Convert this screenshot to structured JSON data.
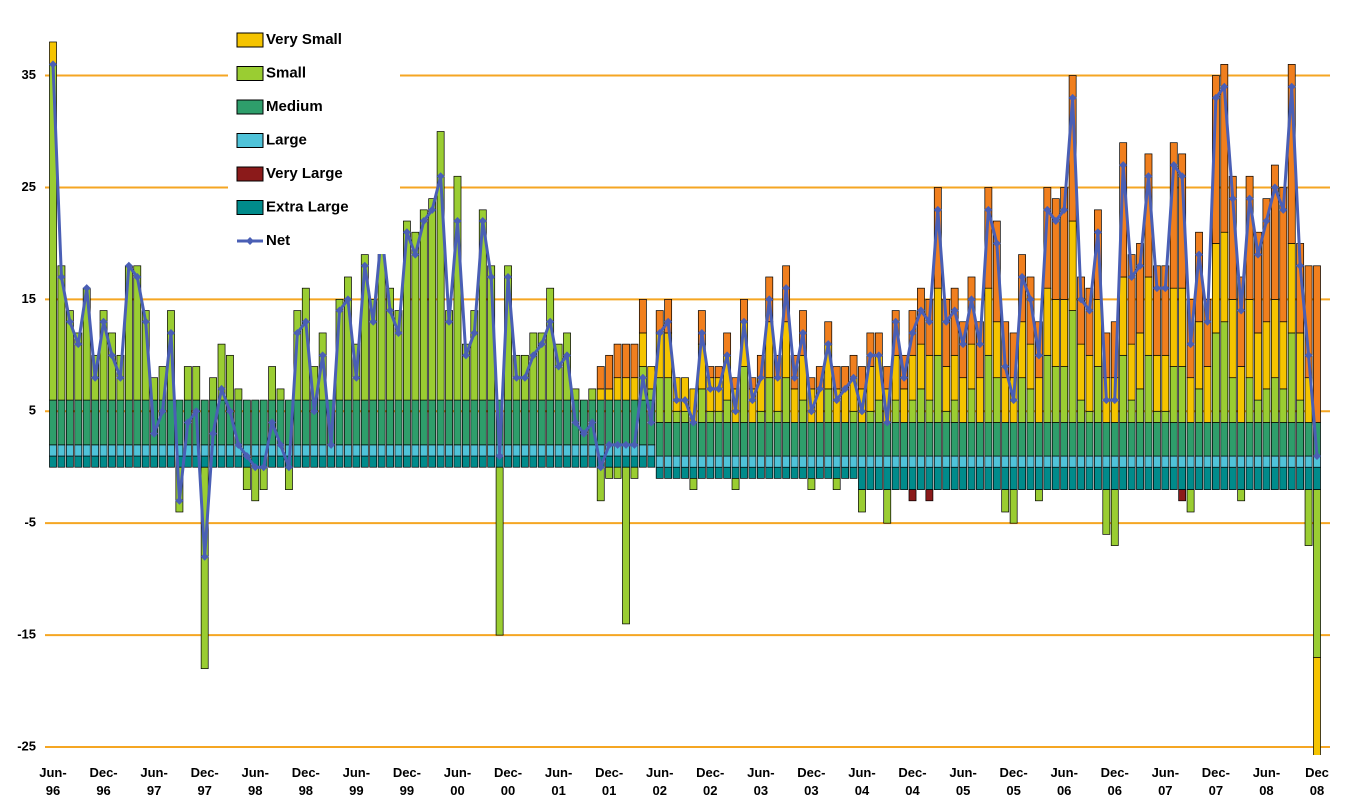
{
  "chart_data": {
    "type": "bar",
    "stacked": true,
    "grid": true,
    "legend_position": "upper-left",
    "ylim": [
      -25,
      40.5
    ],
    "yticks": [
      -25,
      -15,
      -5,
      5,
      15,
      25,
      35
    ],
    "categories": [
      "Jun-96",
      null,
      null,
      null,
      null,
      null,
      "Dec-96",
      null,
      null,
      null,
      null,
      null,
      "Jun-97",
      null,
      null,
      null,
      null,
      null,
      "Dec-97",
      null,
      null,
      null,
      null,
      null,
      "Jun-98",
      null,
      null,
      null,
      null,
      null,
      "Dec-98",
      null,
      null,
      null,
      null,
      null,
      "Jun-99",
      null,
      null,
      null,
      null,
      null,
      "Dec-99",
      null,
      null,
      null,
      null,
      null,
      "Jun-00",
      null,
      null,
      null,
      null,
      null,
      "Dec-00",
      null,
      null,
      null,
      null,
      null,
      "Jun-01",
      null,
      null,
      null,
      null,
      null,
      "Dec-01",
      null,
      null,
      null,
      null,
      null,
      "Jun-02",
      null,
      null,
      null,
      null,
      null,
      "Dec-02",
      null,
      null,
      null,
      null,
      null,
      "Jun-03",
      null,
      null,
      null,
      null,
      null,
      "Dec-03",
      null,
      null,
      null,
      null,
      null,
      "Jun-04",
      null,
      null,
      null,
      null,
      null,
      "Dec-04",
      null,
      null,
      null,
      null,
      null,
      "Jun-05",
      null,
      null,
      null,
      null,
      null,
      "Dec-05",
      null,
      null,
      null,
      null,
      null,
      "Jun-06",
      null,
      null,
      null,
      null,
      null,
      "Dec-06",
      null,
      null,
      null,
      null,
      null,
      "Jun-07",
      null,
      null,
      null,
      null,
      null,
      "Dec-07",
      null,
      null,
      null,
      null,
      null,
      "Jun-08",
      null,
      null,
      null,
      null,
      null,
      "Dec 08"
    ],
    "series": [
      {
        "color": "#f07f1e",
        "values": [
          0,
          0,
          0,
          0,
          0,
          0,
          0,
          0,
          0,
          0,
          0,
          0,
          0,
          0,
          0,
          0,
          0,
          0,
          0,
          0,
          0,
          0,
          0,
          0,
          0,
          0,
          0,
          0,
          0,
          0,
          0,
          0,
          0,
          0,
          0,
          0,
          0,
          0,
          0,
          0,
          0,
          0,
          0,
          0,
          0,
          0,
          0,
          0,
          0,
          0,
          0,
          0,
          0,
          0,
          0,
          0,
          0,
          0,
          0,
          0,
          0,
          0,
          0,
          0,
          0,
          2,
          3,
          3,
          3,
          3,
          3,
          0,
          2,
          3,
          0,
          0,
          0,
          3,
          1,
          1,
          2,
          1,
          2,
          1,
          2,
          4,
          2,
          5,
          3,
          4,
          1,
          2,
          2,
          2,
          2,
          2,
          2,
          3,
          2,
          2,
          4,
          3,
          4,
          5,
          5,
          9,
          6,
          6,
          5,
          6,
          5,
          9,
          9,
          5,
          4,
          6,
          6,
          5,
          9,
          9,
          10,
          13,
          6,
          6,
          8,
          4,
          5,
          12,
          8,
          8,
          11,
          8,
          8,
          13,
          12,
          7,
          8,
          6,
          15,
          15,
          11,
          8,
          11,
          9,
          11,
          12,
          12,
          16,
          8,
          10,
          14
        ]
      },
      {
        "name": "Very Small",
        "color": "#f5c400",
        "values": [
          2,
          0,
          0,
          0,
          0,
          0,
          0,
          0,
          0,
          0,
          0,
          0,
          0,
          0,
          0,
          0,
          0,
          0,
          0,
          0,
          0,
          0,
          0,
          0,
          0,
          0,
          0,
          0,
          0,
          0,
          0,
          0,
          0,
          0,
          0,
          0,
          0,
          0,
          0,
          0,
          0,
          0,
          0,
          0,
          0,
          0,
          0,
          0,
          0,
          0,
          0,
          0,
          0,
          0,
          0,
          0,
          0,
          0,
          0,
          0,
          0,
          0,
          0,
          0,
          0,
          1,
          1,
          2,
          2,
          2,
          3,
          2,
          4,
          4,
          3,
          3,
          3,
          4,
          3,
          3,
          4,
          3,
          4,
          3,
          3,
          5,
          3,
          5,
          3,
          4,
          3,
          3,
          4,
          3,
          3,
          3,
          3,
          4,
          4,
          3,
          4,
          3,
          4,
          4,
          4,
          6,
          4,
          4,
          4,
          4,
          4,
          6,
          5,
          4,
          4,
          5,
          4,
          4,
          6,
          6,
          6,
          8,
          5,
          5,
          6,
          4,
          4,
          7,
          5,
          5,
          7,
          5,
          5,
          7,
          7,
          4,
          6,
          5,
          8,
          8,
          7,
          5,
          7,
          6,
          6,
          7,
          6,
          8,
          6,
          4,
          -10
        ]
      },
      {
        "name": "Small",
        "color": "#9acd32",
        "values": [
          30,
          12,
          8,
          6,
          10,
          4,
          8,
          6,
          4,
          12,
          12,
          8,
          2,
          3,
          8,
          -4,
          3,
          3,
          -18,
          2,
          5,
          4,
          1,
          -2,
          -3,
          -2,
          3,
          1,
          -2,
          8,
          10,
          3,
          6,
          0,
          9,
          11,
          5,
          13,
          9,
          16,
          10,
          8,
          16,
          15,
          17,
          18,
          24,
          8,
          20,
          5,
          8,
          17,
          12,
          -15,
          12,
          4,
          4,
          6,
          6,
          10,
          5,
          6,
          1,
          0,
          1,
          -3,
          -1,
          -1,
          -14,
          -1,
          3,
          1,
          4,
          4,
          1,
          1,
          -1,
          3,
          1,
          1,
          2,
          -1,
          5,
          0,
          1,
          4,
          1,
          4,
          0,
          2,
          -1,
          0,
          3,
          -1,
          0,
          1,
          -2,
          1,
          2,
          -3,
          2,
          0,
          2,
          3,
          2,
          6,
          1,
          2,
          0,
          3,
          0,
          6,
          4,
          -2,
          -3,
          4,
          3,
          -1,
          6,
          5,
          5,
          10,
          2,
          1,
          5,
          -4,
          -5,
          6,
          2,
          3,
          6,
          1,
          1,
          5,
          5,
          -2,
          3,
          0,
          8,
          9,
          4,
          -1,
          4,
          2,
          3,
          4,
          3,
          8,
          2,
          -5,
          -15
        ]
      },
      {
        "name": "Medium",
        "color": "#2e9e6b",
        "values": [
          4,
          4,
          4,
          4,
          4,
          4,
          4,
          4,
          4,
          4,
          4,
          4,
          4,
          4,
          4,
          4,
          4,
          4,
          4,
          4,
          4,
          4,
          4,
          4,
          4,
          4,
          4,
          4,
          4,
          4,
          4,
          4,
          4,
          4,
          4,
          4,
          4,
          4,
          4,
          4,
          4,
          4,
          4,
          4,
          4,
          4,
          4,
          4,
          4,
          4,
          4,
          4,
          4,
          4,
          4,
          4,
          4,
          4,
          4,
          4,
          4,
          4,
          4,
          4,
          4,
          4,
          4,
          4,
          4,
          4,
          4,
          4,
          3,
          3,
          3,
          3,
          3,
          3,
          3,
          3,
          3,
          3,
          3,
          3,
          3,
          3,
          3,
          3,
          3,
          3,
          3,
          3,
          3,
          3,
          3,
          3,
          3,
          3,
          3,
          3,
          3,
          3,
          3,
          3,
          3,
          3,
          3,
          3,
          3,
          3,
          3,
          3,
          3,
          3,
          3,
          3,
          3,
          3,
          3,
          3,
          3,
          3,
          3,
          3,
          3,
          3,
          3,
          3,
          3,
          3,
          3,
          3,
          3,
          3,
          3,
          3,
          3,
          3,
          3,
          3,
          3,
          3,
          3,
          3,
          3,
          3,
          3,
          3,
          3,
          3,
          3
        ]
      },
      {
        "name": "Large",
        "color": "#4fc3d9",
        "values": [
          1,
          1,
          1,
          1,
          1,
          1,
          1,
          1,
          1,
          1,
          1,
          1,
          1,
          1,
          1,
          1,
          1,
          1,
          1,
          1,
          1,
          1,
          1,
          1,
          1,
          1,
          1,
          1,
          1,
          1,
          1,
          1,
          1,
          1,
          1,
          1,
          1,
          1,
          1,
          1,
          1,
          1,
          1,
          1,
          1,
          1,
          1,
          1,
          1,
          1,
          1,
          1,
          1,
          1,
          1,
          1,
          1,
          1,
          1,
          1,
          1,
          1,
          1,
          1,
          1,
          1,
          1,
          1,
          1,
          1,
          1,
          1,
          1,
          1,
          1,
          1,
          1,
          1,
          1,
          1,
          1,
          1,
          1,
          1,
          1,
          1,
          1,
          1,
          1,
          1,
          1,
          1,
          1,
          1,
          1,
          1,
          1,
          1,
          1,
          1,
          1,
          1,
          1,
          1,
          1,
          1,
          1,
          1,
          1,
          1,
          1,
          1,
          1,
          1,
          1,
          1,
          1,
          1,
          1,
          1,
          1,
          1,
          1,
          1,
          1,
          1,
          1,
          1,
          1,
          1,
          1,
          1,
          1,
          1,
          1,
          1,
          1,
          1,
          1,
          1,
          1,
          1,
          1,
          1,
          1,
          1,
          1,
          1,
          1,
          1,
          1
        ]
      },
      {
        "name": "Very Large",
        "color": "#8b1a1a",
        "values": [
          0,
          0,
          0,
          0,
          0,
          0,
          0,
          0,
          0,
          0,
          0,
          0,
          0,
          0,
          0,
          0,
          0,
          0,
          0,
          0,
          0,
          0,
          0,
          0,
          0,
          0,
          0,
          0,
          0,
          0,
          0,
          0,
          0,
          0,
          0,
          0,
          0,
          0,
          0,
          0,
          0,
          0,
          0,
          0,
          0,
          0,
          0,
          0,
          0,
          0,
          0,
          0,
          0,
          0,
          0,
          0,
          0,
          0,
          0,
          0,
          0,
          0,
          0,
          0,
          0,
          0,
          0,
          0,
          0,
          0,
          0,
          0,
          0,
          0,
          0,
          0,
          0,
          0,
          0,
          0,
          0,
          0,
          0,
          0,
          0,
          0,
          0,
          0,
          0,
          0,
          0,
          0,
          0,
          0,
          0,
          0,
          0,
          0,
          0,
          0,
          0,
          0,
          -1,
          0,
          -1,
          0,
          0,
          0,
          0,
          0,
          0,
          0,
          0,
          0,
          0,
          0,
          0,
          0,
          0,
          0,
          0,
          0,
          0,
          0,
          0,
          0,
          0,
          0,
          0,
          0,
          0,
          0,
          0,
          0,
          -1,
          0,
          0,
          0,
          0,
          0,
          0,
          0,
          0,
          0,
          0,
          0,
          0,
          0,
          0,
          0,
          0
        ]
      },
      {
        "name": "Extra Large",
        "color": "#008b8b",
        "values": [
          1,
          1,
          1,
          1,
          1,
          1,
          1,
          1,
          1,
          1,
          1,
          1,
          1,
          1,
          1,
          1,
          1,
          1,
          1,
          1,
          1,
          1,
          1,
          1,
          1,
          1,
          1,
          1,
          1,
          1,
          1,
          1,
          1,
          1,
          1,
          1,
          1,
          1,
          1,
          1,
          1,
          1,
          1,
          1,
          1,
          1,
          1,
          1,
          1,
          1,
          1,
          1,
          1,
          1,
          1,
          1,
          1,
          1,
          1,
          1,
          1,
          1,
          1,
          1,
          1,
          1,
          1,
          1,
          1,
          1,
          1,
          1,
          -1,
          -1,
          -1,
          -1,
          -1,
          -1,
          -1,
          -1,
          -1,
          -1,
          -1,
          -1,
          -1,
          -1,
          -1,
          -1,
          -1,
          -1,
          -1,
          -1,
          -1,
          -1,
          -1,
          -1,
          -2,
          -2,
          -2,
          -2,
          -2,
          -2,
          -2,
          -2,
          -2,
          -2,
          -2,
          -2,
          -2,
          -2,
          -2,
          -2,
          -2,
          -2,
          -2,
          -2,
          -2,
          -2,
          -2,
          -2,
          -2,
          -2,
          -2,
          -2,
          -2,
          -2,
          -2,
          -2,
          -2,
          -2,
          -2,
          -2,
          -2,
          -2,
          -2,
          -2,
          -2,
          -2,
          -2,
          -2,
          -2,
          -2,
          -2,
          -2,
          -2,
          -2,
          -2,
          -2,
          -2,
          -2,
          -2
        ]
      }
    ],
    "lines": [
      {
        "name": "Net",
        "color": "#4a5fb5",
        "values": [
          36,
          17,
          13,
          11,
          16,
          8,
          13,
          10,
          8,
          18,
          17,
          13,
          3,
          5,
          12,
          -3,
          4,
          5,
          -8,
          3,
          7,
          5,
          2,
          1,
          0,
          0,
          4,
          2,
          0,
          12,
          13,
          5,
          10,
          2,
          14,
          15,
          8,
          18,
          13,
          21,
          14,
          12,
          21,
          19,
          22,
          23,
          26,
          13,
          22,
          10,
          12,
          22,
          17,
          1,
          17,
          8,
          8,
          10,
          11,
          13,
          9,
          10,
          4,
          3,
          4,
          0,
          2,
          2,
          2,
          2,
          8,
          4,
          12,
          13,
          6,
          6,
          4,
          12,
          7,
          7,
          10,
          5,
          13,
          6,
          8,
          15,
          8,
          16,
          8,
          12,
          5,
          7,
          11,
          6,
          7,
          8,
          5,
          10,
          10,
          4,
          13,
          8,
          12,
          14,
          13,
          23,
          13,
          14,
          11,
          15,
          11,
          23,
          20,
          9,
          6,
          17,
          15,
          10,
          23,
          22,
          23,
          33,
          15,
          14,
          21,
          6,
          6,
          27,
          17,
          18,
          26,
          16,
          16,
          27,
          26,
          11,
          19,
          13,
          33,
          34,
          24,
          14,
          24,
          19,
          22,
          25,
          23,
          34,
          18,
          10,
          1
        ]
      }
    ]
  }
}
